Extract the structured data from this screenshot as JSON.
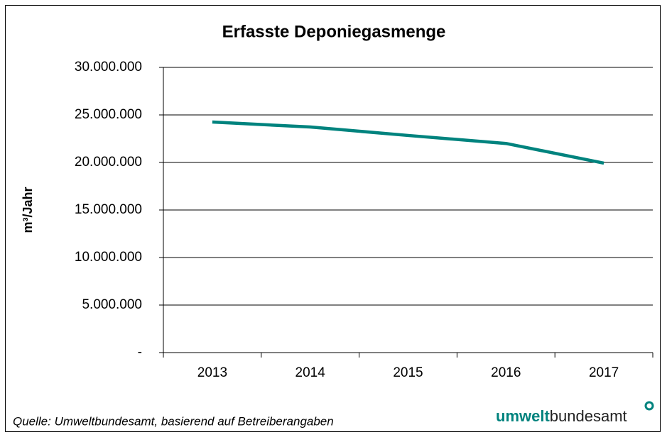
{
  "chart_data": {
    "type": "line",
    "title": "Erfasste Deponiegasmenge",
    "y_label": "m³/Jahr",
    "categories": [
      "2013",
      "2014",
      "2015",
      "2016",
      "2017"
    ],
    "values": [
      24250000,
      23730000,
      22840000,
      22000000,
      19930000
    ],
    "color": "#00837e",
    "ylim": [
      0,
      30000000
    ],
    "yticks": [
      {
        "value": 0,
        "label": "-"
      },
      {
        "value": 5000000,
        "label": "5.000.000"
      },
      {
        "value": 10000000,
        "label": "10.000.000"
      },
      {
        "value": 15000000,
        "label": "15.000.000"
      },
      {
        "value": 20000000,
        "label": "20.000.000"
      },
      {
        "value": 25000000,
        "label": "25.000.000"
      },
      {
        "value": 30000000,
        "label": "30.000.000"
      }
    ],
    "grid": true
  },
  "source": "Quelle: Umweltbundesamt, basierend auf Betreiberangaben",
  "logo": {
    "bold": "umwelt",
    "regular": "bundesamt"
  }
}
